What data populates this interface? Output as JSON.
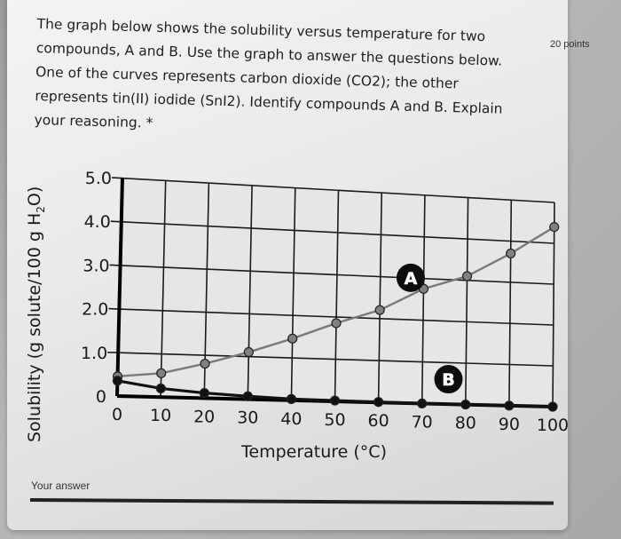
{
  "question": {
    "text": "The graph below shows the solubility versus temperature for two compounds, A and B. Use the graph to answer the questions below. One of the curves represents carbon dioxide (CO2); the other represents tin(II) iodide (SnI2). Identify compounds A and B. Explain your reasoning.",
    "required_marker": "*",
    "points": "20 points"
  },
  "answer": {
    "label": "Your answer",
    "value": ""
  },
  "axis": {
    "ylabel_main": "Solubility (g solute/100 g H",
    "ylabel_sub": "2",
    "ylabel_end": "O)",
    "xlabel": "Temperature (°C)"
  },
  "colors": {
    "curve_a": "#7a7a7a",
    "curve_b": "#111111",
    "grid": "#1a1a1a"
  },
  "chart_data": {
    "type": "line",
    "title": "",
    "xlabel": "Temperature (°C)",
    "ylabel": "Solubility (g solute/100 g H2O)",
    "x": [
      0,
      10,
      20,
      30,
      40,
      50,
      60,
      70,
      80,
      90,
      100
    ],
    "xticks": [
      "0",
      "10",
      "20",
      "30",
      "40",
      "50",
      "60",
      "70",
      "80",
      "90",
      "100"
    ],
    "yticks": [
      "0",
      "1.0",
      "2.0",
      "3.0",
      "4.0",
      "5.0"
    ],
    "xlim": [
      0,
      100
    ],
    "ylim": [
      0,
      5
    ],
    "grid": true,
    "series": [
      {
        "name": "A",
        "values": [
          0.45,
          0.55,
          0.8,
          1.1,
          1.45,
          1.85,
          2.2,
          2.75,
          3.1,
          3.7,
          4.4
        ]
      },
      {
        "name": "B",
        "values": [
          0.35,
          0.2,
          0.12,
          0.07,
          0.03,
          0.02,
          0.01,
          0.0,
          0.0,
          0.0,
          0.0
        ]
      }
    ],
    "annotations": [
      {
        "label": "A",
        "x": 67,
        "y": 3.0
      },
      {
        "label": "B",
        "x": 76,
        "y": 0.6
      }
    ]
  }
}
